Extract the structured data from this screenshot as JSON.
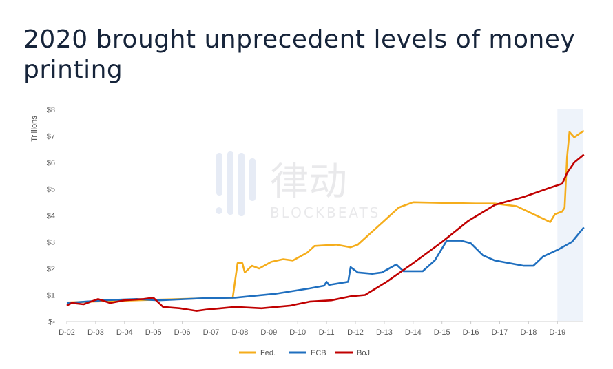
{
  "title": "2020 brought unprecedent levels of money printing",
  "watermark": {
    "chinese": "律动",
    "latin": "BLOCKBEATS"
  },
  "chart_data": {
    "type": "line",
    "title": "2020 brought unprecedent levels of money printing",
    "ylabel": "Trillions",
    "xlabel": "",
    "ylim": [
      0,
      8
    ],
    "yticks": [
      0,
      1,
      2,
      3,
      4,
      5,
      6,
      7,
      8
    ],
    "ytick_labels": [
      "$-",
      "$1",
      "$2",
      "$3",
      "$4",
      "$5",
      "$6",
      "$7",
      "$8"
    ],
    "xticks": [
      "2002-12",
      "2003-12",
      "2004-12",
      "2005-12",
      "2006-12",
      "2007-12",
      "2008-12",
      "2009-12",
      "2010-12",
      "2011-12",
      "2012-12",
      "2013-12",
      "2014-12",
      "2015-12",
      "2016-12",
      "2017-12",
      "2018-12",
      "2019-12"
    ],
    "xtick_labels": [
      "D-02",
      "D-03",
      "D-04",
      "D-05",
      "D-06",
      "D-07",
      "D-08",
      "D-09",
      "D-10",
      "D-11",
      "D-12",
      "D-13",
      "D-14",
      "D-15",
      "D-16",
      "D-17",
      "D-18",
      "D-19"
    ],
    "xlim": [
      "2002-12",
      "2020-12"
    ],
    "grid": false,
    "legend": "bottom",
    "highlight_range": [
      "2019-12",
      "2020-12"
    ],
    "highlight_color": "#eef3fa",
    "series": [
      {
        "name": "Fed.",
        "color": "#f5ad1b",
        "points": [
          [
            "2002-12",
            0.72
          ],
          [
            "2005-12",
            0.82
          ],
          [
            "2007-12",
            0.88
          ],
          [
            "2008-09",
            0.9
          ],
          [
            "2008-11",
            2.2
          ],
          [
            "2009-01",
            2.2
          ],
          [
            "2009-02",
            1.85
          ],
          [
            "2009-05",
            2.1
          ],
          [
            "2009-08",
            2.0
          ],
          [
            "2010-01",
            2.25
          ],
          [
            "2010-06",
            2.35
          ],
          [
            "2010-10",
            2.3
          ],
          [
            "2011-04",
            2.6
          ],
          [
            "2011-07",
            2.85
          ],
          [
            "2012-04",
            2.9
          ],
          [
            "2012-10",
            2.8
          ],
          [
            "2013-01",
            2.9
          ],
          [
            "2013-12",
            3.8
          ],
          [
            "2014-06",
            4.3
          ],
          [
            "2014-12",
            4.5
          ],
          [
            "2017-02",
            4.45
          ],
          [
            "2017-10",
            4.45
          ],
          [
            "2018-07",
            4.35
          ],
          [
            "2019-09",
            3.75
          ],
          [
            "2019-11",
            4.05
          ],
          [
            "2020-02",
            4.15
          ],
          [
            "2020-03",
            4.3
          ],
          [
            "2020-04",
            6.2
          ],
          [
            "2020-05",
            7.15
          ],
          [
            "2020-07",
            6.95
          ],
          [
            "2020-11",
            7.2
          ]
        ]
      },
      {
        "name": "ECB",
        "color": "#1f6fbf",
        "points": [
          [
            "2002-12",
            0.7
          ],
          [
            "2004-03",
            0.8
          ],
          [
            "2005-05",
            0.85
          ],
          [
            "2006-02",
            0.8
          ],
          [
            "2007-10",
            0.88
          ],
          [
            "2008-10",
            0.9
          ],
          [
            "2010-03",
            1.05
          ],
          [
            "2011-05",
            1.25
          ],
          [
            "2011-11",
            1.35
          ],
          [
            "2011-12",
            1.5
          ],
          [
            "2012-01",
            1.38
          ],
          [
            "2012-09",
            1.5
          ],
          [
            "2012-10",
            2.05
          ],
          [
            "2013-01",
            1.85
          ],
          [
            "2013-07",
            1.8
          ],
          [
            "2013-11",
            1.85
          ],
          [
            "2014-05",
            2.15
          ],
          [
            "2014-08",
            1.9
          ],
          [
            "2015-04",
            1.9
          ],
          [
            "2015-09",
            2.3
          ],
          [
            "2016-02",
            3.05
          ],
          [
            "2016-08",
            3.05
          ],
          [
            "2016-12",
            2.95
          ],
          [
            "2017-05",
            2.5
          ],
          [
            "2017-10",
            2.3
          ],
          [
            "2018-10",
            2.1
          ],
          [
            "2019-02",
            2.1
          ],
          [
            "2019-06",
            2.45
          ],
          [
            "2019-12",
            2.7
          ],
          [
            "2020-06",
            3.0
          ],
          [
            "2020-11",
            3.55
          ]
        ]
      },
      {
        "name": "BoJ",
        "color": "#c00000",
        "points": [
          [
            "2002-12",
            0.6
          ],
          [
            "2003-02",
            0.7
          ],
          [
            "2003-07",
            0.65
          ],
          [
            "2004-01",
            0.85
          ],
          [
            "2004-06",
            0.7
          ],
          [
            "2004-12",
            0.8
          ],
          [
            "2005-08",
            0.85
          ],
          [
            "2005-12",
            0.9
          ],
          [
            "2006-04",
            0.55
          ],
          [
            "2006-11",
            0.5
          ],
          [
            "2007-06",
            0.4
          ],
          [
            "2007-10",
            0.45
          ],
          [
            "2008-04",
            0.5
          ],
          [
            "2008-10",
            0.55
          ],
          [
            "2009-09",
            0.5
          ],
          [
            "2010-09",
            0.6
          ],
          [
            "2011-05",
            0.75
          ],
          [
            "2012-02",
            0.8
          ],
          [
            "2012-10",
            0.95
          ],
          [
            "2013-04",
            1.0
          ],
          [
            "2014-01",
            1.5
          ],
          [
            "2014-12",
            2.2
          ],
          [
            "2015-12",
            3.0
          ],
          [
            "2016-11",
            3.8
          ],
          [
            "2017-10",
            4.4
          ],
          [
            "2018-10",
            4.7
          ],
          [
            "2019-09",
            5.05
          ],
          [
            "2020-02",
            5.2
          ],
          [
            "2020-04",
            5.6
          ],
          [
            "2020-07",
            6.0
          ],
          [
            "2020-11",
            6.3
          ]
        ]
      }
    ]
  }
}
